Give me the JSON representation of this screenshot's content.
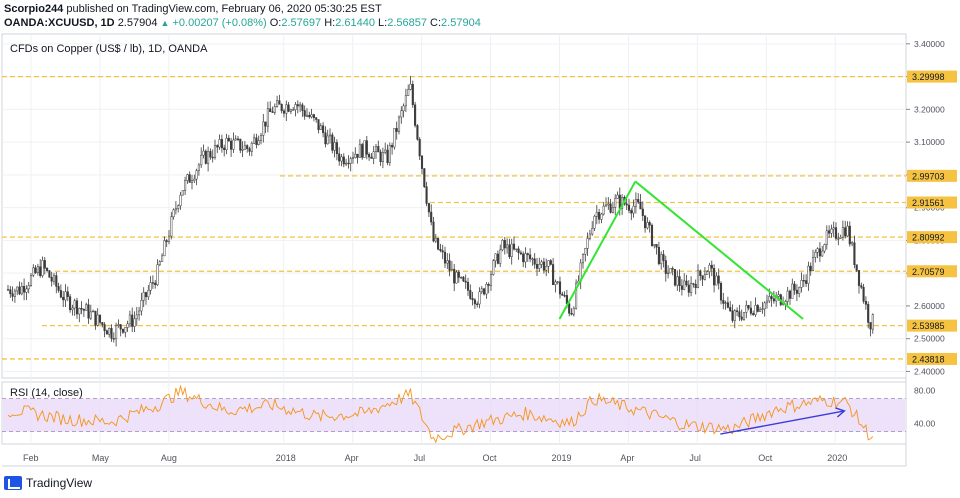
{
  "header": {
    "publisher": "Scorpio244",
    "published_text": "published on TradingView.com, February 06, 2020 05:30:25 EST",
    "symbol": "OANDA:XCUUSD, 1D",
    "last": "2.57904",
    "change": "+0.00207 (+0.08%)",
    "o_label": "O:",
    "o": "2.57697",
    "h_label": "H:",
    "h": "2.61440",
    "l_label": "L:",
    "l": "2.56857",
    "c_label": "C:",
    "c": "2.57904"
  },
  "footer": {
    "brand": "TradingView"
  },
  "colors": {
    "candle": "#3a3a3a",
    "level_line": "#f5c242",
    "level_label_bg": "#f5c242",
    "trend_green": "#33e533",
    "rsi_line": "#f7931a",
    "rsi_band": "#e6d6f7",
    "rsi_trend": "#3b3bd9",
    "grid": "#eef0f3"
  },
  "chart_data": [
    {
      "type": "candlestick",
      "title": "CFDs on Copper (US$ / lb), 1D, OANDA",
      "ylim": [
        2.38,
        3.43
      ],
      "y_ticks": [
        "3.40000",
        "3.30000",
        "3.20000",
        "3.10000",
        "3.00000",
        "2.90000",
        "2.80000",
        "2.70000",
        "2.60000",
        "2.50000",
        "2.40000"
      ],
      "x_ticks": [
        "Feb",
        "May",
        "Aug",
        "2018",
        "Apr",
        "Jul",
        "Oct",
        "2019",
        "Apr",
        "Jul",
        "Oct",
        "2020"
      ],
      "horizontal_levels": [
        {
          "label": "3.29998",
          "value": 3.29998
        },
        {
          "label": "2.99703",
          "value": 2.99703
        },
        {
          "label": "2.91561",
          "value": 2.91561
        },
        {
          "label": "2.80992",
          "value": 2.80992
        },
        {
          "label": "2.70579",
          "value": 2.70579
        },
        {
          "label": "2.53985",
          "value": 2.53985
        },
        {
          "label": "2.43818",
          "value": 2.43818
        }
      ],
      "series_approx": [
        {
          "date": "2017-01",
          "value": 2.65
        },
        {
          "date": "2017-02",
          "value": 2.72
        },
        {
          "date": "2017-03",
          "value": 2.62
        },
        {
          "date": "2017-04",
          "value": 2.58
        },
        {
          "date": "2017-05",
          "value": 2.52
        },
        {
          "date": "2017-06",
          "value": 2.56
        },
        {
          "date": "2017-07",
          "value": 2.7
        },
        {
          "date": "2017-08",
          "value": 2.95
        },
        {
          "date": "2017-09",
          "value": 3.05
        },
        {
          "date": "2017-10",
          "value": 3.1
        },
        {
          "date": "2017-11",
          "value": 3.08
        },
        {
          "date": "2017-12",
          "value": 3.2
        },
        {
          "date": "2018-01",
          "value": 3.22
        },
        {
          "date": "2018-02",
          "value": 3.15
        },
        {
          "date": "2018-03",
          "value": 3.05
        },
        {
          "date": "2018-04",
          "value": 3.08
        },
        {
          "date": "2018-05",
          "value": 3.05
        },
        {
          "date": "2018-06",
          "value": 3.27
        },
        {
          "date": "2018-07",
          "value": 2.8
        },
        {
          "date": "2018-08",
          "value": 2.68
        },
        {
          "date": "2018-09",
          "value": 2.62
        },
        {
          "date": "2018-10",
          "value": 2.78
        },
        {
          "date": "2018-11",
          "value": 2.75
        },
        {
          "date": "2018-12",
          "value": 2.72
        },
        {
          "date": "2019-01",
          "value": 2.58
        },
        {
          "date": "2019-02",
          "value": 2.88
        },
        {
          "date": "2019-03",
          "value": 2.92
        },
        {
          "date": "2019-04",
          "value": 2.9
        },
        {
          "date": "2019-05",
          "value": 2.72
        },
        {
          "date": "2019-06",
          "value": 2.65
        },
        {
          "date": "2019-07",
          "value": 2.72
        },
        {
          "date": "2019-08",
          "value": 2.56
        },
        {
          "date": "2019-09",
          "value": 2.6
        },
        {
          "date": "2019-10",
          "value": 2.62
        },
        {
          "date": "2019-11",
          "value": 2.66
        },
        {
          "date": "2019-12",
          "value": 2.8
        },
        {
          "date": "2020-01",
          "value": 2.84
        },
        {
          "date": "2020-02",
          "value": 2.55
        }
      ]
    },
    {
      "type": "line",
      "title": "RSI (14, close)",
      "ylim": [
        15,
        90
      ],
      "y_ticks": [
        "80.00",
        "40.00"
      ],
      "band": [
        30,
        70
      ],
      "series_approx": [
        {
          "date": "2017-01",
          "value": 55
        },
        {
          "date": "2017-03",
          "value": 45
        },
        {
          "date": "2017-05",
          "value": 42
        },
        {
          "date": "2017-07",
          "value": 62
        },
        {
          "date": "2017-08",
          "value": 78
        },
        {
          "date": "2017-10",
          "value": 55
        },
        {
          "date": "2017-12",
          "value": 62
        },
        {
          "date": "2018-02",
          "value": 48
        },
        {
          "date": "2018-04",
          "value": 52
        },
        {
          "date": "2018-06",
          "value": 75
        },
        {
          "date": "2018-07",
          "value": 22
        },
        {
          "date": "2018-09",
          "value": 40
        },
        {
          "date": "2018-11",
          "value": 52
        },
        {
          "date": "2019-01",
          "value": 40
        },
        {
          "date": "2019-02",
          "value": 70
        },
        {
          "date": "2019-04",
          "value": 55
        },
        {
          "date": "2019-06",
          "value": 38
        },
        {
          "date": "2019-08",
          "value": 33
        },
        {
          "date": "2019-10",
          "value": 58
        },
        {
          "date": "2019-12",
          "value": 68
        },
        {
          "date": "2020-01",
          "value": 65
        },
        {
          "date": "2020-02",
          "value": 25
        }
      ]
    }
  ]
}
